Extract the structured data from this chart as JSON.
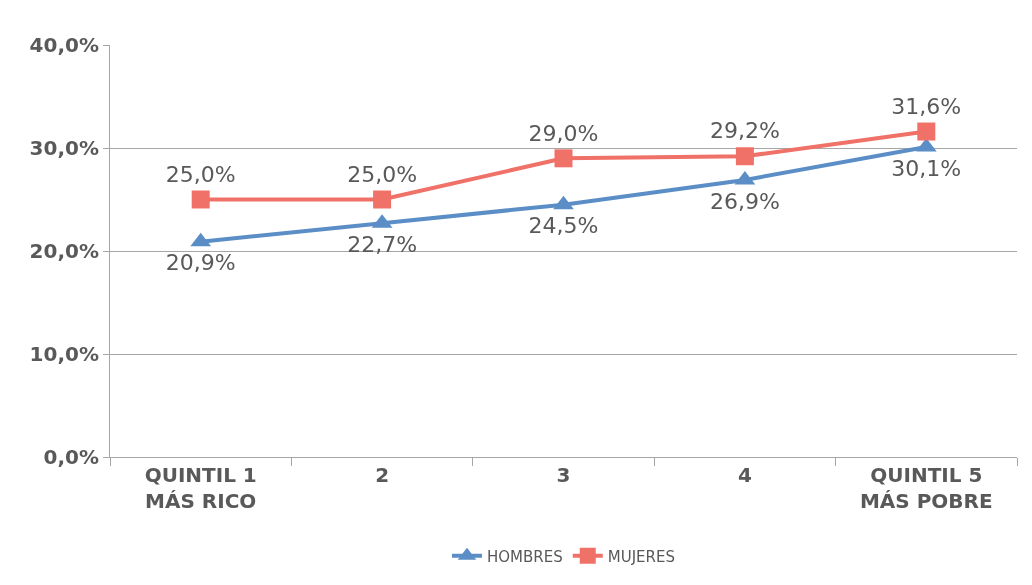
{
  "chart_data": {
    "type": "line",
    "categories": [
      "QUINTIL 1\nMÁS RICO",
      "2",
      "3",
      "4",
      "QUINTIL 5\nMÁS POBRE"
    ],
    "series": [
      {
        "name": "HOMBRES",
        "color": "#5b8ec6",
        "marker": "triangle",
        "values": [
          20.9,
          22.7,
          24.5,
          26.9,
          30.1
        ],
        "value_labels": [
          "20,9%",
          "22,7%",
          "24,5%",
          "26,9%",
          "30,1%"
        ]
      },
      {
        "name": "MUJERES",
        "color": "#f07167",
        "marker": "square",
        "values": [
          25.0,
          25.0,
          29.0,
          29.2,
          31.6
        ],
        "value_labels": [
          "25,0%",
          "25,0%",
          "29,0%",
          "29,2%",
          "31,6%"
        ]
      }
    ],
    "ylim": [
      0,
      40
    ],
    "yticks": [
      {
        "value": 0,
        "label": "0,0%"
      },
      {
        "value": 10,
        "label": "10,0%"
      },
      {
        "value": 20,
        "label": "20,0%"
      },
      {
        "value": 30,
        "label": "30,0%"
      },
      {
        "value": 40,
        "label": "40,0%"
      }
    ],
    "grid": "y",
    "legend": "bottom",
    "line_style": "solid"
  }
}
